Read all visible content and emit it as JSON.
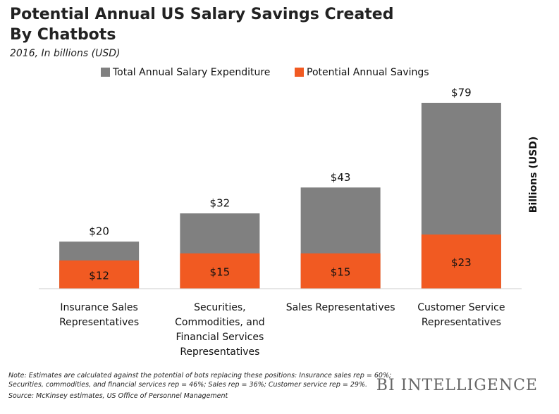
{
  "chart_data": {
    "type": "bar",
    "title": "Potential Annual US Salary Savings Created By Chatbots",
    "subtitle": "2016, In billions (USD)",
    "y_label": "Billions (USD)",
    "categories": [
      "Insurance Sales Representatives",
      "Securities, Commodities, and Financial Services Representatives",
      "Sales Representatives",
      "Customer Service Representatives"
    ],
    "series": [
      {
        "name": "Total Annual Salary Expenditure",
        "color": "#808080",
        "values": [
          20,
          32,
          43,
          79
        ],
        "value_labels": [
          "$20",
          "$32",
          "$43",
          "$79"
        ]
      },
      {
        "name": "Potential Annual Savings",
        "color": "#f15a22",
        "values": [
          12,
          15,
          15,
          23
        ],
        "value_labels": [
          "$12",
          "$15",
          "$15",
          "$23"
        ]
      }
    ],
    "note": "Note: Estimates are calculated against the potential of bots replacing these positions: Insurance sales rep = 60%; Securities, commodities, and financial services rep = 46%; Sales rep = 36%; Customer service rep = 29%.",
    "source": "Source: McKinsey estimates, US Office of Personnel Management",
    "brand": "BI INTELLIGENCE"
  }
}
